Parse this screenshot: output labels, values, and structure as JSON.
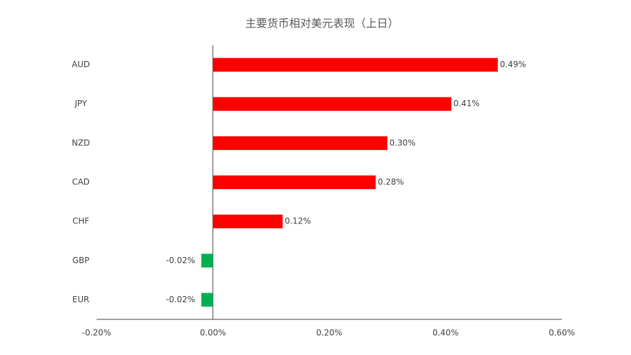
{
  "chart_data": {
    "type": "bar",
    "orientation": "horizontal",
    "title": "主要货币相对美元表现（上日）",
    "categories": [
      "AUD",
      "JPY",
      "NZD",
      "CAD",
      "CHF",
      "GBP",
      "EUR"
    ],
    "values": [
      0.49,
      0.41,
      0.3,
      0.28,
      0.12,
      -0.02,
      -0.02
    ],
    "value_labels": [
      "0.49%",
      "0.41%",
      "0.30%",
      "0.28%",
      "0.12%",
      "-0.02%",
      "-0.02%"
    ],
    "colors": [
      "#ff0000",
      "#ff0000",
      "#ff0000",
      "#ff0000",
      "#ff0000",
      "#00b050",
      "#00b050"
    ],
    "xlim": [
      -0.2,
      0.6
    ],
    "xticks": [
      {
        "value": -0.2,
        "label": "-0.20%"
      },
      {
        "value": 0,
        "label": "0.00%"
      },
      {
        "value": 0.2,
        "label": "0.20%"
      },
      {
        "value": 0.4,
        "label": "0.40%"
      },
      {
        "value": 0.6,
        "label": "0.60%"
      }
    ],
    "grid": false
  }
}
